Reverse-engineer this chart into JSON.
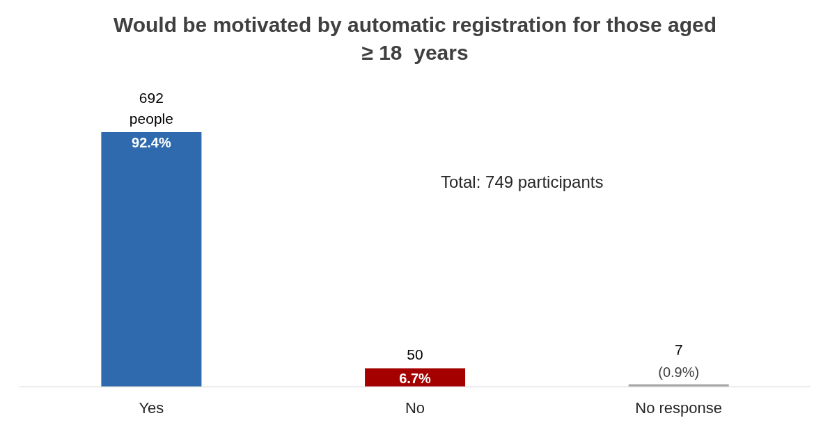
{
  "chart_data": {
    "type": "bar",
    "title": "Would be motivated by automatic registration for those aged  ≥ 18  years",
    "categories": [
      "Yes",
      "No",
      "No response"
    ],
    "values": [
      92.4,
      6.7,
      0.9
    ],
    "colors": [
      "#2e6aad",
      "#a50000",
      "#a6a6a6"
    ],
    "value_labels": [
      "92.4%",
      "6.7%",
      "(0.9%)"
    ],
    "annotations": [
      {
        "text": "692 people",
        "x": "Yes",
        "y": 92.4
      },
      {
        "text": "50",
        "x": "No",
        "y": 6.7
      },
      {
        "text": "7",
        "x": "No response",
        "y": 0.9
      },
      "Total: 749 participants"
    ],
    "grid": false,
    "legend": false
  }
}
